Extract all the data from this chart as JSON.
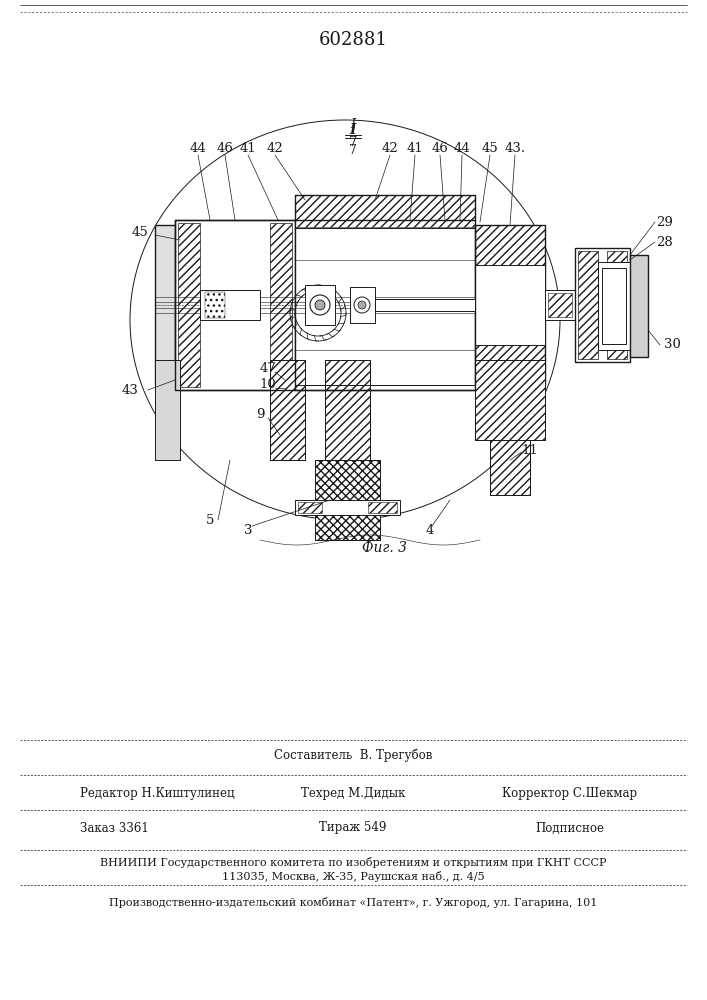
{
  "patent_number": "602881",
  "figure_label": "Фиг. 3",
  "bg_color": "#ffffff",
  "line_color": "#1a1a1a",
  "footer": {
    "editor_label": "Редактор",
    "editor_name": "Н.Киштулинец",
    "compiler_label": "Составитель",
    "compiler_name": "В. Трегубов",
    "techred_label": "Техред",
    "techred_name": "М.Дидык",
    "corrector_label": "Корректор",
    "corrector_name": "С.Шекмар",
    "order_label": "Заказ",
    "order_num": "3361",
    "tirazh_label": "Тираж",
    "tirazh_num": "549",
    "podpisnoe": "Подписное",
    "vniipи_line": "ВНИИПИ Государственного комитета по изобретениям и открытиям при ГКНТ СССР",
    "address_line": "113035, Москва, Ж-35, Раушская наб., д. 4/5",
    "proizv_line": "Производственно-издательский комбинат «Патент», г. Ужгород, ул. Гагарина, 101"
  }
}
